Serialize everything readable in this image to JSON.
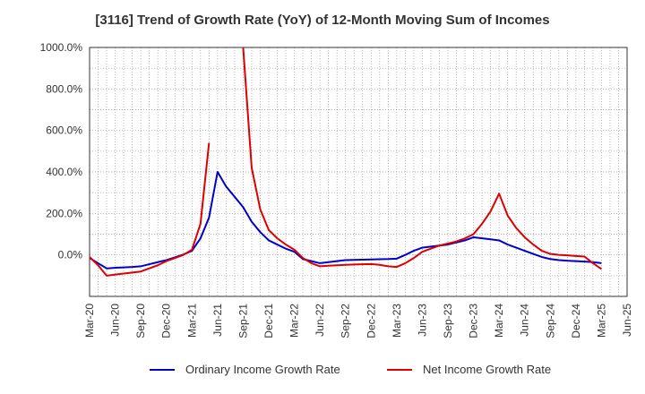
{
  "colors": {
    "ordinary": "#0000cc",
    "net": "#dd0000",
    "grid": "#999999",
    "axis": "#333333"
  },
  "chart_data": {
    "type": "line",
    "title": "[3116]  Trend of Growth Rate (YoY) of 12-Month Moving Sum of Incomes",
    "xlabel": "",
    "ylabel": "",
    "x_ticks": [
      "Mar-20",
      "Jun-20",
      "Sep-20",
      "Dec-20",
      "Mar-21",
      "Jun-21",
      "Sep-21",
      "Dec-21",
      "Mar-22",
      "Jun-22",
      "Sep-22",
      "Dec-22",
      "Mar-23",
      "Jun-23",
      "Sep-23",
      "Dec-23",
      "Mar-24",
      "Jun-24",
      "Sep-24",
      "Dec-24",
      "Mar-25",
      "Jun-25"
    ],
    "y_ticks": [
      0,
      200,
      400,
      600,
      800,
      1000
    ],
    "y_tick_labels": [
      "0.0%",
      "200.0%",
      "400.0%",
      "600.0%",
      "800.0%",
      "1000.0%"
    ],
    "ylim": [
      -200,
      1000
    ],
    "grid": true,
    "legend_position": "bottom",
    "x": [
      "2020-03",
      "2020-04",
      "2020-05",
      "2020-06",
      "2020-07",
      "2020-08",
      "2020-09",
      "2020-10",
      "2020-11",
      "2020-12",
      "2021-01",
      "2021-02",
      "2021-03",
      "2021-04",
      "2021-05",
      "2021-06",
      "2021-07",
      "2021-08",
      "2021-09",
      "2021-10",
      "2021-11",
      "2021-12",
      "2022-01",
      "2022-02",
      "2022-03",
      "2022-04",
      "2022-05",
      "2022-06",
      "2022-07",
      "2022-08",
      "2022-09",
      "2022-10",
      "2022-11",
      "2022-12",
      "2023-01",
      "2023-02",
      "2023-03",
      "2023-04",
      "2023-05",
      "2023-06",
      "2023-07",
      "2023-08",
      "2023-09",
      "2023-10",
      "2023-11",
      "2023-12",
      "2024-01",
      "2024-02",
      "2024-03",
      "2024-04",
      "2024-05",
      "2024-06",
      "2024-07",
      "2024-08",
      "2024-09",
      "2024-10",
      "2024-11",
      "2024-12",
      "2025-01",
      "2025-02",
      "2025-03"
    ],
    "series": [
      {
        "name": "Ordinary Income Growth Rate",
        "values": [
          -15,
          -40,
          -65,
          -62,
          -60,
          -58,
          -55,
          -45,
          -35,
          -25,
          -12,
          2,
          20,
          80,
          180,
          400,
          330,
          280,
          230,
          160,
          110,
          70,
          50,
          30,
          15,
          -20,
          -30,
          -40,
          -35,
          -30,
          -25,
          -24,
          -23,
          -22,
          -21,
          -20,
          -18,
          0,
          20,
          35,
          40,
          45,
          50,
          60,
          70,
          85,
          80,
          75,
          70,
          50,
          35,
          20,
          5,
          -10,
          -20,
          -25,
          -28,
          -30,
          -32,
          -35,
          -40
        ]
      },
      {
        "name": "Net Income Growth Rate",
        "values": [
          -10,
          -50,
          -100,
          -95,
          -90,
          -85,
          -80,
          -65,
          -50,
          -30,
          -15,
          0,
          25,
          150,
          540,
          null,
          null,
          null,
          1000,
          420,
          220,
          120,
          80,
          50,
          25,
          -15,
          -40,
          -55,
          -52,
          -50,
          -48,
          -46,
          -45,
          -44,
          -48,
          -55,
          -58,
          -40,
          -15,
          15,
          30,
          45,
          55,
          65,
          80,
          100,
          150,
          210,
          295,
          190,
          130,
          85,
          50,
          20,
          5,
          0,
          -2,
          -5,
          -8,
          -40,
          -68
        ]
      }
    ]
  },
  "legend": {
    "ordinary_label": "Ordinary Income Growth Rate",
    "net_label": "Net Income Growth Rate"
  }
}
